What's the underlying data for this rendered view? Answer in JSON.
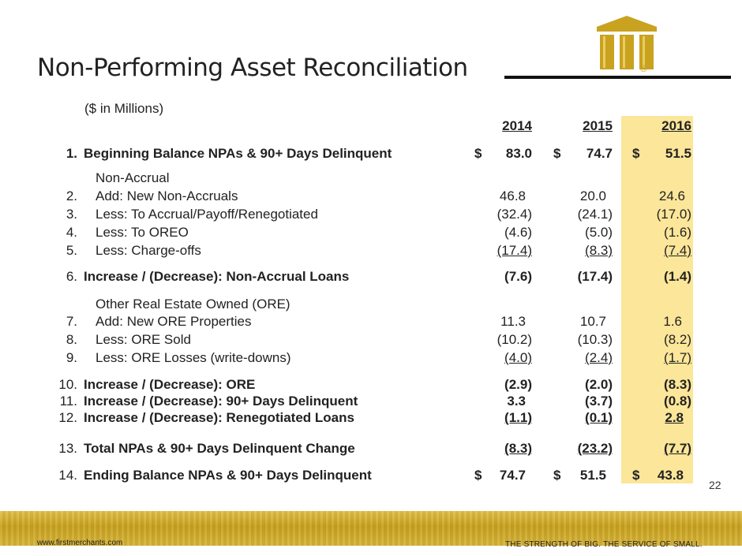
{
  "slide": {
    "title": "Non-Performing Asset Reconciliation",
    "subtitle": "($ in Millions)",
    "page_number": "22",
    "footer_url": "www.firstmerchants.com",
    "footer_tagline": "THE STRENGTH OF BIG. THE SERVICE OF SMALL.",
    "logo_mark": "®",
    "highlight_color": "#fbe699",
    "brand_gold": "#c9a21f"
  },
  "table": {
    "years": [
      "2014",
      "2015",
      "2016"
    ],
    "sections": {
      "non_accrual": "Non-Accrual",
      "ore": "Other Real Estate Owned (ORE)"
    },
    "rows": [
      {
        "num": "1.",
        "label": "Beginning Balance NPAs & 90+ Days Delinquent",
        "values": [
          "83.0",
          "74.7",
          "51.5"
        ],
        "dollar": "$"
      },
      {
        "num": "2.",
        "label": "Add: New Non-Accruals",
        "values": [
          "46.8",
          "20.0",
          "24.6"
        ]
      },
      {
        "num": "3.",
        "label": "Less:  To Accrual/Payoff/Renegotiated",
        "values": [
          "(32.4)",
          "(24.1)",
          "(17.0)"
        ]
      },
      {
        "num": "4.",
        "label": "Less: To OREO",
        "values": [
          "(4.6)",
          "(5.0)",
          "(1.6)"
        ]
      },
      {
        "num": "5.",
        "label": "Less:  Charge-offs",
        "values": [
          "(17.4)",
          "(8.3)",
          "(7.4)"
        ]
      },
      {
        "num": "6.",
        "label": "Increase / (Decrease):  Non-Accrual Loans",
        "values": [
          "(7.6)",
          "(17.4)",
          "(1.4)"
        ]
      },
      {
        "num": "7.",
        "label": "Add:  New ORE Properties",
        "values": [
          "11.3",
          "10.7",
          "1.6"
        ]
      },
      {
        "num": "8.",
        "label": "Less: ORE Sold",
        "values": [
          "(10.2)",
          "(10.3)",
          "(8.2)"
        ]
      },
      {
        "num": "9.",
        "label": "Less: ORE Losses (write-downs)",
        "values": [
          "(4.0)",
          "(2.4)",
          "(1.7)"
        ]
      },
      {
        "num": "10.",
        "label": "Increase / (Decrease): ORE",
        "values": [
          "(2.9)",
          "(2.0)",
          "(8.3)"
        ]
      },
      {
        "num": "11.",
        "label": "Increase / (Decrease): 90+ Days Delinquent",
        "values": [
          "3.3",
          "(3.7)",
          "(0.8)"
        ]
      },
      {
        "num": "12.",
        "label": "Increase / (Decrease): Renegotiated Loans",
        "values": [
          "(1.1)",
          "(0.1)",
          "2.8"
        ]
      },
      {
        "num": "13.",
        "label": "Total NPAs & 90+ Days Delinquent Change",
        "values": [
          "(8.3)",
          "(23.2)",
          "(7.7)"
        ]
      },
      {
        "num": "14.",
        "label": "Ending Balance NPAs & 90+ Days Delinquent",
        "values": [
          "74.7",
          "51.5",
          "43.8"
        ],
        "dollar": "$"
      }
    ]
  }
}
